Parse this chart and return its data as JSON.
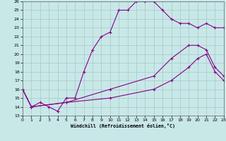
{
  "xlabel": "Windchill (Refroidissement éolien,°C)",
  "xlim": [
    0,
    23
  ],
  "ylim": [
    13,
    26
  ],
  "yticks": [
    13,
    14,
    15,
    16,
    17,
    18,
    19,
    20,
    21,
    22,
    23,
    24,
    25,
    26
  ],
  "xticks": [
    0,
    1,
    2,
    3,
    4,
    5,
    6,
    7,
    8,
    9,
    10,
    11,
    12,
    13,
    14,
    15,
    16,
    17,
    18,
    19,
    20,
    21,
    22,
    23
  ],
  "background_color": "#c8e8e8",
  "grid_color": "#a8c8c8",
  "line_color": "#880088",
  "line1_x": [
    0,
    1,
    2,
    3,
    4,
    5,
    6,
    7,
    8,
    9,
    10,
    11,
    12,
    13,
    14,
    15,
    16,
    17,
    18,
    19,
    20,
    21,
    22,
    23
  ],
  "line1_y": [
    16,
    14,
    14.5,
    14,
    13.5,
    15,
    15.0,
    18,
    20.5,
    22,
    22.5,
    25,
    25,
    26,
    26,
    26,
    25,
    24,
    23.5,
    23.5,
    23,
    23.5,
    23,
    23
  ],
  "line2_x": [
    0,
    1,
    5,
    10,
    15,
    17,
    19,
    20,
    21,
    22,
    23
  ],
  "line2_y": [
    16,
    14,
    14.5,
    16,
    17.5,
    19.5,
    21.0,
    21.0,
    20.5,
    18.5,
    17.5
  ],
  "line3_x": [
    0,
    1,
    5,
    10,
    15,
    17,
    19,
    20,
    21,
    22,
    23
  ],
  "line3_y": [
    16,
    14,
    14.5,
    15.0,
    16.0,
    17.0,
    18.5,
    19.5,
    20.0,
    18.0,
    17.0
  ]
}
